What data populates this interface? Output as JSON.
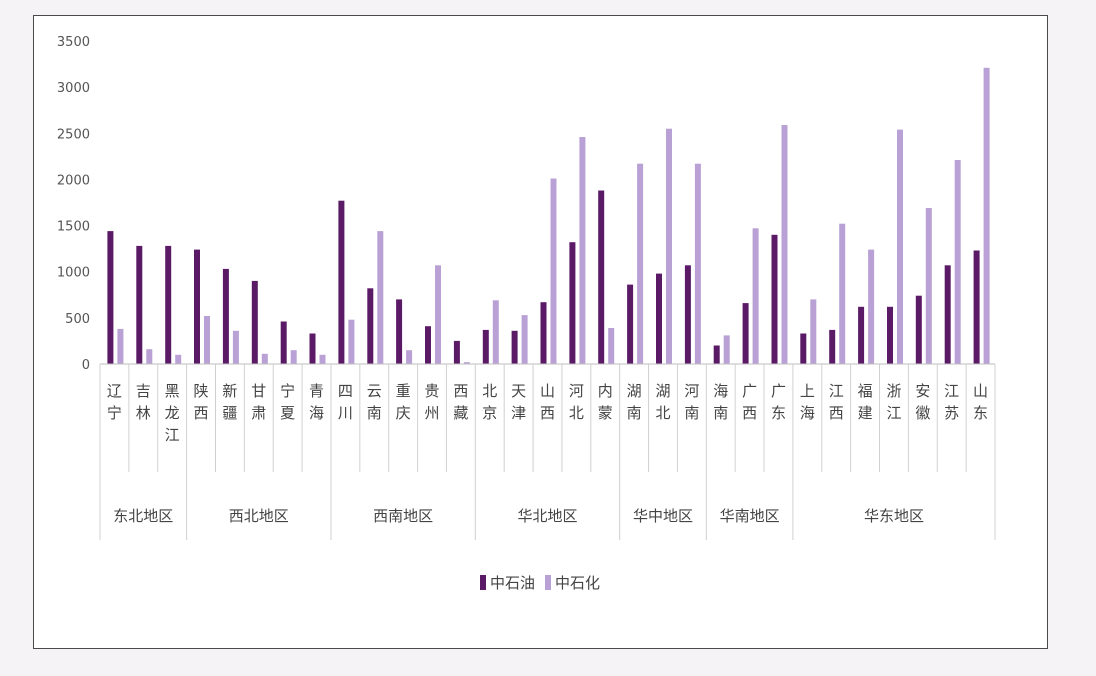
{
  "chart_data": {
    "type": "bar",
    "title": "",
    "xlabel": "",
    "ylabel": "",
    "ylim": [
      0,
      3500
    ],
    "yticks": [
      0,
      500,
      1000,
      1500,
      2000,
      2500,
      3000,
      3500
    ],
    "grid": false,
    "legend_position": "bottom",
    "categories": [
      "辽宁",
      "吉林",
      "黑龙江",
      "陕西",
      "新疆",
      "甘肃",
      "宁夏",
      "青海",
      "四川",
      "云南",
      "重庆",
      "贵州",
      "西藏",
      "北京",
      "天津",
      "山西",
      "河北",
      "内蒙",
      "湖南",
      "湖北",
      "河南",
      "海南",
      "广西",
      "广东",
      "上海",
      "江西",
      "福建",
      "浙江",
      "安徽",
      "江苏",
      "山东"
    ],
    "groups": [
      {
        "name": "东北地区",
        "count": 3
      },
      {
        "name": "西北地区",
        "count": 5
      },
      {
        "name": "西南地区",
        "count": 5
      },
      {
        "name": "华北地区",
        "count": 5
      },
      {
        "name": "华中地区",
        "count": 3
      },
      {
        "name": "华南地区",
        "count": 3
      },
      {
        "name": "华东地区",
        "count": 7
      }
    ],
    "series": [
      {
        "name": "中石油",
        "color": "#5b1a66",
        "values": [
          1440,
          1280,
          1280,
          1240,
          1030,
          900,
          460,
          330,
          1770,
          820,
          700,
          410,
          250,
          370,
          360,
          670,
          1320,
          1880,
          860,
          980,
          1070,
          200,
          660,
          1400,
          330,
          370,
          620,
          620,
          740,
          1070,
          1230
        ]
      },
      {
        "name": "中石化",
        "color": "#b9a1d6",
        "values": [
          380,
          160,
          100,
          520,
          360,
          110,
          150,
          100,
          480,
          1440,
          150,
          1070,
          20,
          690,
          530,
          2010,
          2460,
          390,
          2170,
          2550,
          2170,
          310,
          1470,
          2590,
          700,
          1520,
          1240,
          2540,
          1690,
          2210,
          3210
        ]
      }
    ]
  }
}
